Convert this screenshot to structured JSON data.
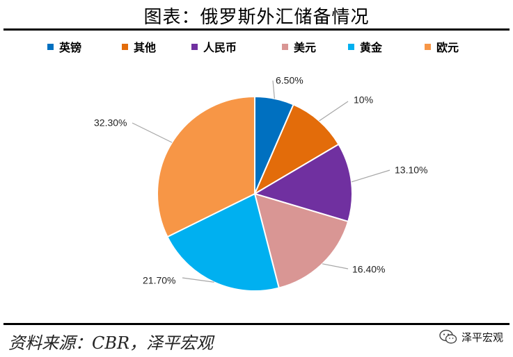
{
  "title": "图表：俄罗斯外汇储备情况",
  "source": "资料来源：CBR，泽平宏观",
  "brand": {
    "name": "泽平宏观",
    "icon": "wechat-icon"
  },
  "chart_data": {
    "type": "pie",
    "title": "",
    "start_angle_deg": 0,
    "direction": "clockwise",
    "legend_position": "top",
    "slices": [
      {
        "label": "英镑",
        "value": 6.5,
        "display": "6.50%",
        "color": "#0070c0"
      },
      {
        "label": "其他",
        "value": 10.0,
        "display": "10%",
        "color": "#e36c0a"
      },
      {
        "label": "人民币",
        "value": 13.1,
        "display": "13.10%",
        "color": "#7030a0"
      },
      {
        "label": "美元",
        "value": 16.4,
        "display": "16.40%",
        "color": "#d99694"
      },
      {
        "label": "黄金",
        "value": 21.7,
        "display": "21.70%",
        "color": "#00b0f0"
      },
      {
        "label": "欧元",
        "value": 32.3,
        "display": "32.30%",
        "color": "#f79646"
      }
    ]
  }
}
